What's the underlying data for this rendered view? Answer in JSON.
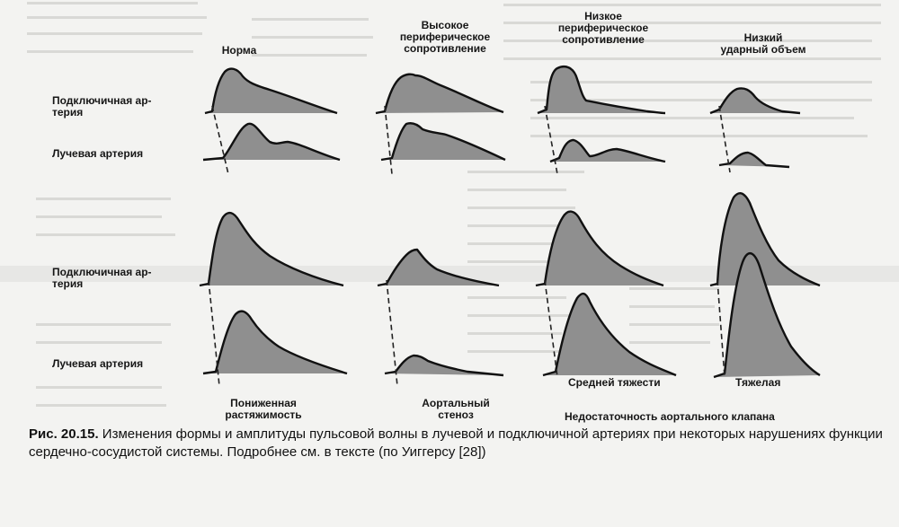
{
  "figure": {
    "columns": {
      "norm": "Норма",
      "high_resistance": "Высокое\nпериферическое\nсопротивление",
      "low_resistance": "Низкое\nпериферическое\nсопротивление",
      "low_stroke": "Низкий\nударный объем"
    },
    "rows": {
      "subclavian_1": "Подключичная ар-\nтерия",
      "radial_1": "Лучевая артерия",
      "subclavian_2": "Подключичная ар-\nтерия",
      "radial_2": "Лучевая артерия"
    },
    "bottom_labels": {
      "reduced_distensibility": "Пониженная\nрастяжимость",
      "aortic_stenosis": "Аортальный\nстеноз",
      "moderate": "Средней тяжести",
      "severe": "Тяжелая",
      "aortic_insufficiency": "Недостаточность аортального клапана"
    }
  },
  "caption": {
    "label": "Рис. 20.15.",
    "text": "Изменения формы и амплитуды пульсовой волны в лучевой и подключичной артериях при некоторых нарушениях функции сердечно-сосудистой системы. Подробнее см. в тексте (по Уиггерсу [28])"
  },
  "colors": {
    "wave_fill": "#8f8f8f",
    "wave_stroke": "#111111"
  }
}
